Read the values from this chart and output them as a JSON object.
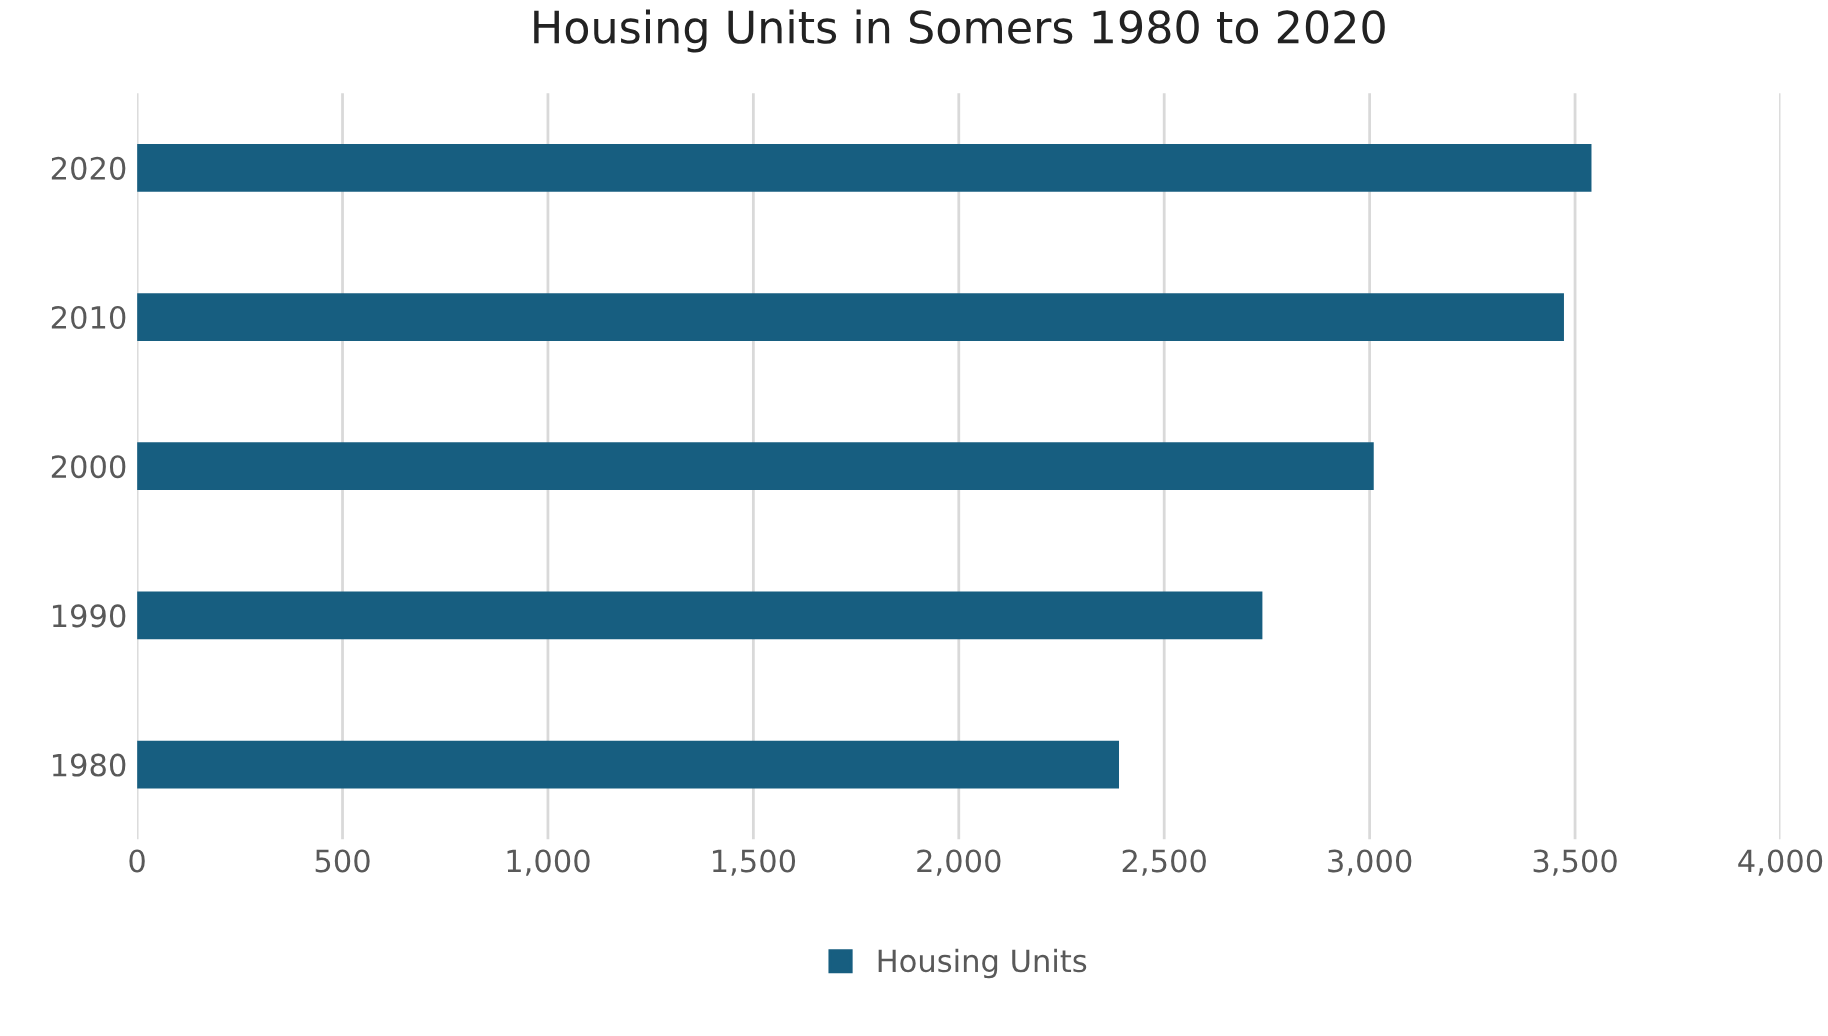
{
  "chart_data": {
    "type": "bar",
    "orientation": "horizontal",
    "title": "Housing Units in Somers 1980 to 2020",
    "categories": [
      "2020",
      "2010",
      "2000",
      "1990",
      "1980"
    ],
    "series": [
      {
        "name": "Housing Units",
        "color": "#175e80",
        "values": [
          3540,
          3473,
          3010,
          2739,
          2390
        ]
      }
    ],
    "xlim": [
      0,
      4000
    ],
    "xticks": [
      {
        "value": 0,
        "label": "0"
      },
      {
        "value": 500,
        "label": "500"
      },
      {
        "value": 1000,
        "label": "1,000"
      },
      {
        "value": 1500,
        "label": "1,500"
      },
      {
        "value": 2000,
        "label": "2,000"
      },
      {
        "value": 2500,
        "label": "2,500"
      },
      {
        "value": 3000,
        "label": "3,000"
      },
      {
        "value": 3500,
        "label": "3,500"
      },
      {
        "value": 4000,
        "label": "4,000"
      }
    ],
    "grid": "x",
    "legend": "bottom"
  }
}
